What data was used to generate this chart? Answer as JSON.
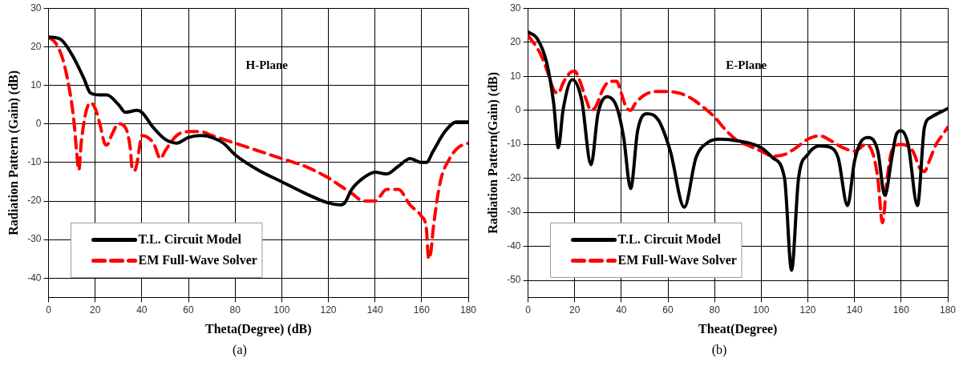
{
  "chart_data": [
    {
      "type": "line",
      "xlabel": "Theta(Degree) (dB)",
      "ylabel": "Radiation Pattern (Gain) (dB)",
      "annotations": [
        "H-Plane",
        "(a)"
      ],
      "xlim": [
        0,
        180
      ],
      "xticks": [
        0,
        20,
        40,
        60,
        80,
        100,
        120,
        140,
        160,
        180
      ],
      "ylim": [
        -45,
        30
      ],
      "yticks": [
        -40,
        -30,
        -20,
        -10,
        0,
        10,
        20,
        30
      ],
      "grid": true,
      "legend": "bottom left",
      "marker": "none",
      "series": [
        {
          "name": "T.L. Circuit Model",
          "color": "#000000",
          "line_style": "solid",
          "x": [
            0,
            5,
            10,
            15,
            18,
            22,
            25,
            30,
            33,
            38,
            40,
            45,
            50,
            55,
            60,
            65,
            70,
            75,
            80,
            90,
            100,
            110,
            120,
            125,
            127,
            130,
            135,
            140,
            145,
            150,
            155,
            160,
            162,
            165,
            170,
            175,
            180
          ],
          "values": [
            22.5,
            22,
            18,
            12,
            8,
            7.5,
            7.5,
            5,
            3,
            3.5,
            3,
            -1,
            -4,
            -5,
            -3.5,
            -3,
            -3.5,
            -5,
            -8,
            -12,
            -15,
            -18,
            -20.5,
            -21,
            -20.5,
            -17,
            -14,
            -12.5,
            -13,
            -11,
            -9,
            -10,
            -10,
            -7,
            -2,
            0.5,
            0.5
          ]
        },
        {
          "name": "EM Full-Wave Solver",
          "color": "#ff0000",
          "line_style": "dashed",
          "x": [
            0,
            3,
            6,
            8,
            10,
            11,
            12,
            13,
            14,
            16,
            18,
            20,
            22,
            24,
            25,
            27,
            30,
            33,
            35,
            36,
            37,
            38,
            39,
            40,
            45,
            48,
            50,
            55,
            60,
            65,
            70,
            80,
            90,
            100,
            110,
            120,
            125,
            130,
            135,
            140,
            145,
            150,
            155,
            160,
            162,
            163,
            164,
            165,
            168,
            172,
            176,
            180
          ],
          "values": [
            22.5,
            21,
            17,
            12,
            5,
            0,
            -7,
            -12,
            -5,
            3,
            5.5,
            4,
            0,
            -5,
            -5.5,
            -3,
            0,
            -1,
            -6,
            -12,
            -12,
            -10,
            -6,
            -3,
            -5,
            -9,
            -7,
            -3,
            -2,
            -2,
            -3,
            -5,
            -7,
            -9,
            -11,
            -14,
            -16,
            -18,
            -20,
            -20,
            -17,
            -17,
            -21,
            -24,
            -27,
            -35,
            -33,
            -27,
            -15,
            -9,
            -6,
            -5
          ]
        }
      ]
    },
    {
      "type": "line",
      "xlabel": "Theat(Degree)",
      "ylabel": "Radiation Pattern(Gain) (dB)",
      "annotations": [
        "E-Plane",
        "(b)"
      ],
      "xlim": [
        0,
        180
      ],
      "xticks": [
        0,
        20,
        40,
        60,
        80,
        100,
        120,
        140,
        160,
        180
      ],
      "ylim": [
        -55,
        30
      ],
      "yticks": [
        -50,
        -40,
        -30,
        -20,
        -10,
        0,
        10,
        20,
        30
      ],
      "grid": true,
      "legend": "bottom left",
      "marker": "none",
      "series": [
        {
          "name": "T.L. Circuit Model",
          "color": "#000000",
          "line_style": "solid",
          "x": [
            0,
            4,
            8,
            11,
            13,
            15,
            19,
            23,
            27,
            30,
            34,
            38,
            41,
            44,
            47,
            51,
            56,
            61,
            67,
            72,
            77,
            82,
            90,
            100,
            105,
            110,
            113,
            116,
            120,
            125,
            130,
            133,
            137,
            140,
            143,
            146,
            150,
            153,
            156,
            158,
            160,
            163,
            167,
            170,
            173,
            180
          ],
          "values": [
            23,
            21,
            14,
            2,
            -11,
            0,
            9,
            3,
            -16,
            -1,
            4,
            1,
            -8,
            -23,
            -6,
            -1,
            -3,
            -12,
            -28.5,
            -14,
            -9.5,
            -8.5,
            -9,
            -11,
            -14,
            -20,
            -47,
            -20,
            -13,
            -10.5,
            -11,
            -14,
            -28,
            -15,
            -9,
            -8,
            -12,
            -25,
            -14,
            -7,
            -6,
            -10,
            -28,
            -5,
            -2,
            0.5
          ]
        },
        {
          "name": "EM Full-Wave Solver",
          "color": "#ff0000",
          "line_style": "dashed",
          "x": [
            0,
            5,
            8,
            11,
            13,
            15,
            18,
            20,
            22,
            25,
            27,
            29,
            32,
            35,
            38,
            40,
            42,
            44,
            46,
            50,
            55,
            60,
            65,
            70,
            75,
            80,
            85,
            90,
            95,
            100,
            105,
            110,
            115,
            120,
            125,
            130,
            135,
            140,
            145,
            148,
            150,
            152,
            154,
            156,
            160,
            165,
            168,
            170,
            172,
            175,
            178,
            180
          ],
          "values": [
            22,
            17,
            12,
            6,
            5,
            8,
            11,
            11.5,
            9,
            3,
            0,
            1,
            6,
            8.5,
            8.5,
            5,
            1,
            0,
            2,
            4.5,
            5.5,
            5.5,
            5,
            3.5,
            1,
            -2,
            -6,
            -9,
            -10.5,
            -12,
            -13.5,
            -13,
            -11,
            -8.5,
            -7.5,
            -9,
            -11,
            -12,
            -10,
            -13,
            -20,
            -33,
            -20,
            -12,
            -10,
            -12,
            -17,
            -18,
            -15,
            -10,
            -7,
            -5
          ]
        }
      ]
    }
  ]
}
